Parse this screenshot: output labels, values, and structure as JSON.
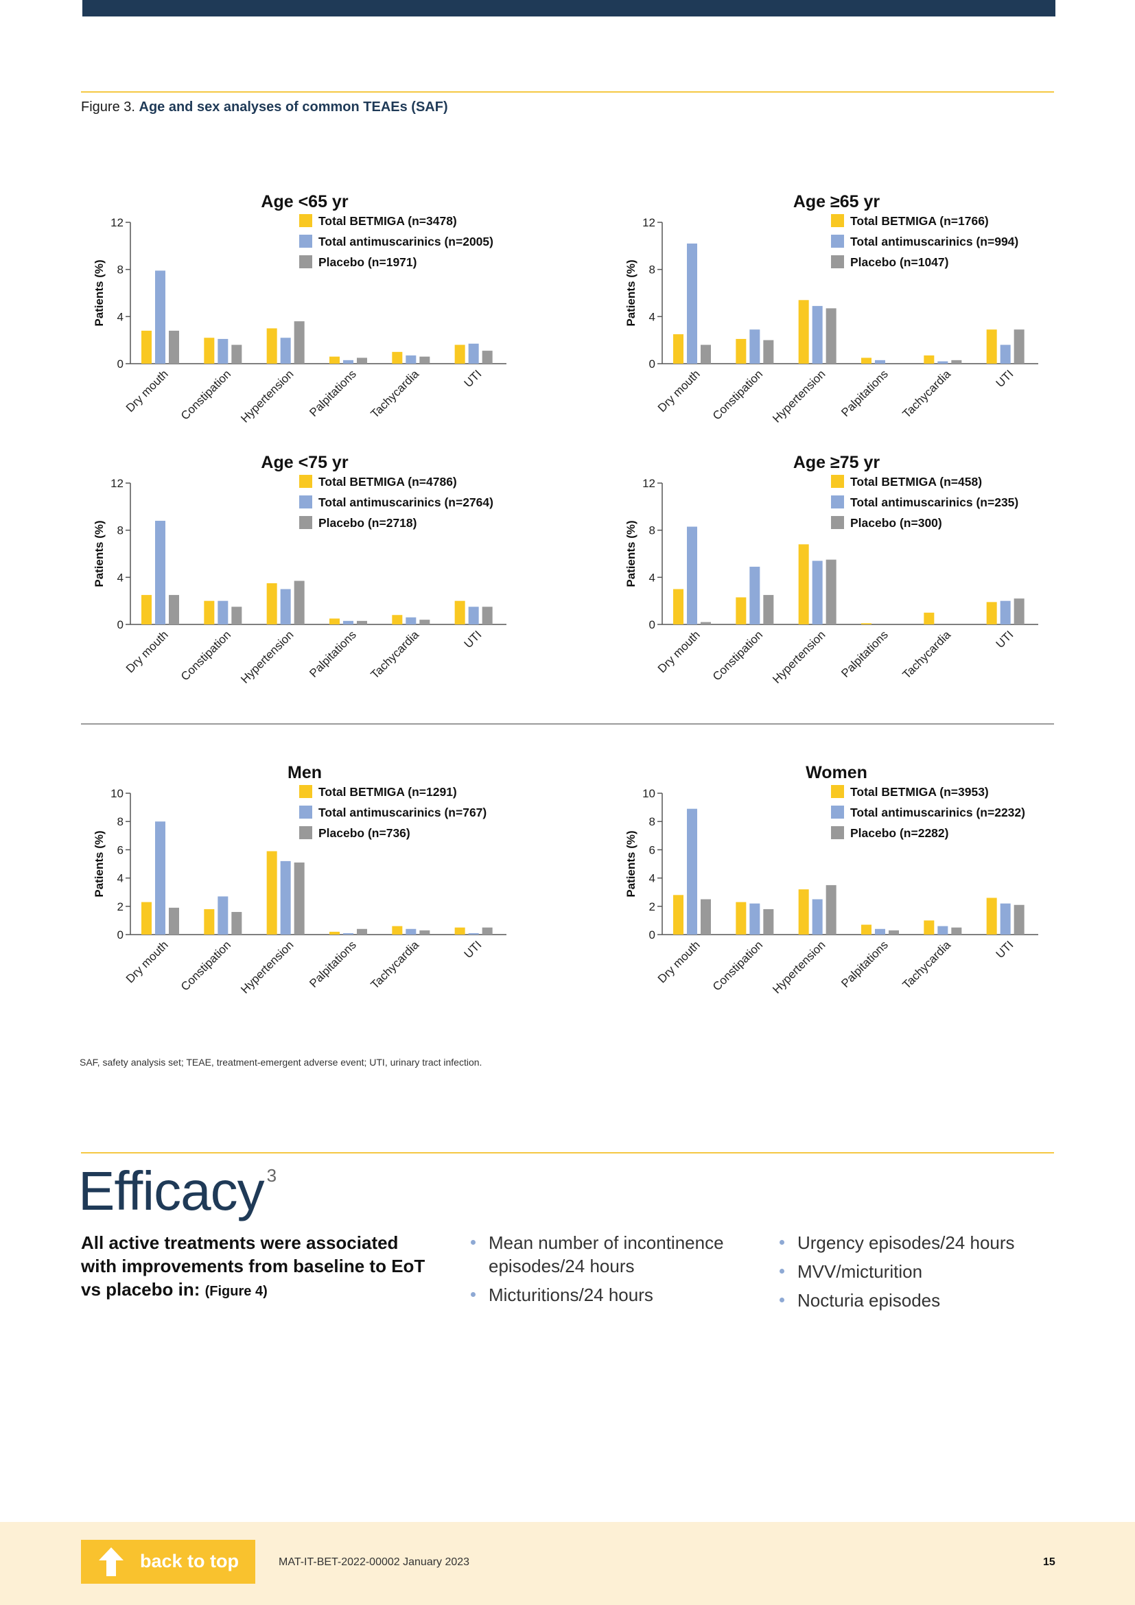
{
  "figure": {
    "label": "Figure 3.",
    "title": "Age and sex analyses of common TEAEs (SAF)"
  },
  "colors": {
    "betmiga": "#f9c822",
    "antimuscarinics": "#8ea9d8",
    "placebo": "#999999",
    "navy": "#1f3a57",
    "gold": "#f5c842"
  },
  "chart_data": [
    {
      "type": "bar",
      "title": "Age <65 yr",
      "ylabel": "Patients (%)",
      "ylim": [
        0,
        12
      ],
      "yticks": [
        0,
        4,
        8,
        12
      ],
      "categories": [
        "Dry mouth",
        "Constipation",
        "Hypertension",
        "Palpitations",
        "Tachycardia",
        "UTI"
      ],
      "series": [
        {
          "name": "Total BETMIGA (n=3478)",
          "values": [
            2.8,
            2.2,
            3.0,
            0.6,
            1.0,
            1.6
          ]
        },
        {
          "name": "Total antimuscarinics (n=2005)",
          "values": [
            7.9,
            2.1,
            2.2,
            0.3,
            0.7,
            1.7
          ]
        },
        {
          "name": "Placebo (n=1971)",
          "values": [
            2.8,
            1.6,
            3.6,
            0.5,
            0.6,
            1.1
          ]
        }
      ]
    },
    {
      "type": "bar",
      "title": "Age ≥65 yr",
      "ylabel": "Patients (%)",
      "ylim": [
        0,
        12
      ],
      "yticks": [
        0,
        4,
        8,
        12
      ],
      "categories": [
        "Dry mouth",
        "Constipation",
        "Hypertension",
        "Palpitations",
        "Tachycardia",
        "UTI"
      ],
      "series": [
        {
          "name": "Total BETMIGA (n=1766)",
          "values": [
            2.5,
            2.1,
            5.4,
            0.5,
            0.7,
            2.9
          ]
        },
        {
          "name": "Total antimuscarinics (n=994)",
          "values": [
            10.2,
            2.9,
            4.9,
            0.3,
            0.2,
            1.6
          ]
        },
        {
          "name": "Placebo (n=1047)",
          "values": [
            1.6,
            2.0,
            4.7,
            0.0,
            0.3,
            2.9
          ]
        }
      ]
    },
    {
      "type": "bar",
      "title": "Age <75 yr",
      "ylabel": "Patients (%)",
      "ylim": [
        0,
        12
      ],
      "yticks": [
        0,
        4,
        8,
        12
      ],
      "categories": [
        "Dry mouth",
        "Constipation",
        "Hypertension",
        "Palpitations",
        "Tachycardia",
        "UTI"
      ],
      "series": [
        {
          "name": "Total BETMIGA (n=4786)",
          "values": [
            2.5,
            2.0,
            3.5,
            0.5,
            0.8,
            2.0
          ]
        },
        {
          "name": "Total antimuscarinics (n=2764)",
          "values": [
            8.8,
            2.0,
            3.0,
            0.3,
            0.6,
            1.5
          ]
        },
        {
          "name": "Placebo (n=2718)",
          "values": [
            2.5,
            1.5,
            3.7,
            0.3,
            0.4,
            1.5
          ]
        }
      ]
    },
    {
      "type": "bar",
      "title": "Age ≥75 yr",
      "ylabel": "Patients (%)",
      "ylim": [
        0,
        12
      ],
      "yticks": [
        0,
        4,
        8,
        12
      ],
      "categories": [
        "Dry mouth",
        "Constipation",
        "Hypertension",
        "Palpitations",
        "Tachycardia",
        "UTI"
      ],
      "series": [
        {
          "name": "Total BETMIGA (n=458)",
          "values": [
            3.0,
            2.3,
            6.8,
            0.1,
            1.0,
            1.9
          ]
        },
        {
          "name": "Total antimuscarinics (n=235)",
          "values": [
            8.3,
            4.9,
            5.4,
            0.0,
            0.0,
            2.0
          ]
        },
        {
          "name": "Placebo (n=300)",
          "values": [
            0.2,
            2.5,
            5.5,
            0.0,
            0.0,
            2.2
          ]
        }
      ]
    },
    {
      "type": "bar",
      "title": "Men",
      "ylabel": "Patients (%)",
      "ylim": [
        0,
        10
      ],
      "yticks": [
        0,
        2,
        4,
        6,
        8,
        10
      ],
      "categories": [
        "Dry mouth",
        "Constipation",
        "Hypertension",
        "Palpitations",
        "Tachycardia",
        "UTI"
      ],
      "series": [
        {
          "name": "Total BETMIGA (n=1291)",
          "values": [
            2.3,
            1.8,
            5.9,
            0.2,
            0.6,
            0.5
          ]
        },
        {
          "name": "Total antimuscarinics (n=767)",
          "values": [
            8.0,
            2.7,
            5.2,
            0.1,
            0.4,
            0.1
          ]
        },
        {
          "name": "Placebo (n=736)",
          "values": [
            1.9,
            1.6,
            5.1,
            0.4,
            0.3,
            0.5
          ]
        }
      ]
    },
    {
      "type": "bar",
      "title": "Women",
      "ylabel": "Patients (%)",
      "ylim": [
        0,
        10
      ],
      "yticks": [
        0,
        2,
        4,
        6,
        8,
        10
      ],
      "categories": [
        "Dry mouth",
        "Constipation",
        "Hypertension",
        "Palpitations",
        "Tachycardia",
        "UTI"
      ],
      "series": [
        {
          "name": "Total BETMIGA (n=3953)",
          "values": [
            2.8,
            2.3,
            3.2,
            0.7,
            1.0,
            2.6
          ]
        },
        {
          "name": "Total antimuscarinics (n=2232)",
          "values": [
            8.9,
            2.2,
            2.5,
            0.4,
            0.6,
            2.2
          ]
        },
        {
          "name": "Placebo (n=2282)",
          "values": [
            2.5,
            1.8,
            3.5,
            0.3,
            0.5,
            2.1
          ]
        }
      ]
    }
  ],
  "footnote": "SAF, safety analysis set; TEAE, treatment-emergent adverse event; UTI, urinary tract infection.",
  "efficacy": {
    "title": "Efficacy",
    "ref": "3",
    "lead": "All active treatments were associated with improvements from baseline to EoT vs placebo in:",
    "lead_ref": "(Figure 4)",
    "bullets_col1": [
      "Mean number of incontinence episodes/24 hours",
      "Micturitions/24 hours"
    ],
    "bullets_col2": [
      "Urgency episodes/24 hours",
      "MVV/micturition",
      "Nocturia episodes"
    ]
  },
  "footer": {
    "back_label": "back to top",
    "doc_code": "MAT-IT-BET-2022-00002 January 2023",
    "page": "15"
  }
}
